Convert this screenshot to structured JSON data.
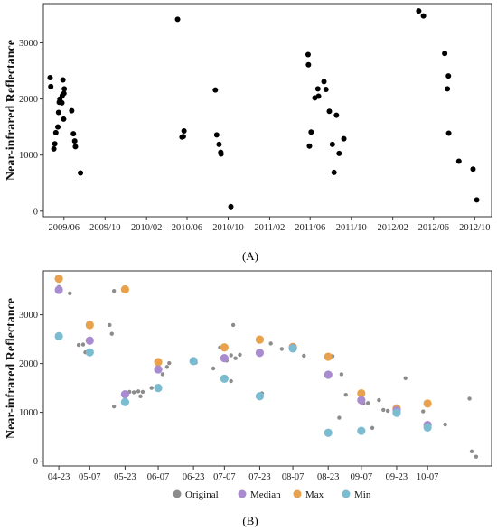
{
  "chart_data": [
    {
      "type": "scatter",
      "panel_label": "(A)",
      "ylabel": "Near-infrared Reflectance",
      "yticks": [
        0,
        1000,
        2000,
        3000
      ],
      "ylim": [
        -100,
        3700
      ],
      "x_ticks": [
        "2009/06",
        "2009/10",
        "2010/02",
        "2010/06",
        "2010/10",
        "2011/02",
        "2011/06",
        "2011/10",
        "2012/02",
        "2012/06",
        "2012/10"
      ],
      "x_domain": [
        "2009-04-01",
        "2012-11-20"
      ],
      "grid": false,
      "color": "#000000",
      "points": [
        {
          "x": "2009-04-21",
          "y": 2380
        },
        {
          "x": "2009-04-23",
          "y": 2220
        },
        {
          "x": "2009-05-02",
          "y": 1110
        },
        {
          "x": "2009-05-05",
          "y": 1200
        },
        {
          "x": "2009-05-08",
          "y": 1400
        },
        {
          "x": "2009-05-14",
          "y": 1500
        },
        {
          "x": "2009-05-16",
          "y": 1760
        },
        {
          "x": "2009-05-18",
          "y": 1940
        },
        {
          "x": "2009-05-20",
          "y": 2000
        },
        {
          "x": "2009-05-26",
          "y": 1930
        },
        {
          "x": "2009-05-27",
          "y": 2060
        },
        {
          "x": "2009-05-29",
          "y": 2340
        },
        {
          "x": "2009-06-01",
          "y": 2100
        },
        {
          "x": "2009-06-02",
          "y": 2180
        },
        {
          "x": "2009-05-31",
          "y": 1640
        },
        {
          "x": "2009-06-24",
          "y": 1790
        },
        {
          "x": "2009-06-29",
          "y": 1380
        },
        {
          "x": "2009-07-03",
          "y": 1250
        },
        {
          "x": "2009-07-05",
          "y": 1150
        },
        {
          "x": "2009-07-20",
          "y": 680
        },
        {
          "x": "2010-05-04",
          "y": 3420
        },
        {
          "x": "2010-05-17",
          "y": 1320
        },
        {
          "x": "2010-05-21",
          "y": 1330
        },
        {
          "x": "2010-05-23",
          "y": 1430
        },
        {
          "x": "2010-08-24",
          "y": 2160
        },
        {
          "x": "2010-08-28",
          "y": 1360
        },
        {
          "x": "2010-09-04",
          "y": 1190
        },
        {
          "x": "2010-09-09",
          "y": 1050
        },
        {
          "x": "2010-09-10",
          "y": 1020
        },
        {
          "x": "2010-10-09",
          "y": 80
        },
        {
          "x": "2011-05-26",
          "y": 2790
        },
        {
          "x": "2011-05-27",
          "y": 2610
        },
        {
          "x": "2011-05-30",
          "y": 1160
        },
        {
          "x": "2011-06-04",
          "y": 1410
        },
        {
          "x": "2011-06-15",
          "y": 2020
        },
        {
          "x": "2011-06-24",
          "y": 2180
        },
        {
          "x": "2011-06-26",
          "y": 2050
        },
        {
          "x": "2011-07-12",
          "y": 2310
        },
        {
          "x": "2011-07-18",
          "y": 2170
        },
        {
          "x": "2011-07-28",
          "y": 1780
        },
        {
          "x": "2011-08-06",
          "y": 1190
        },
        {
          "x": "2011-08-11",
          "y": 690
        },
        {
          "x": "2011-08-18",
          "y": 1710
        },
        {
          "x": "2011-08-26",
          "y": 1030
        },
        {
          "x": "2011-09-09",
          "y": 1290
        },
        {
          "x": "2012-04-18",
          "y": 3570
        },
        {
          "x": "2012-05-02",
          "y": 3480
        },
        {
          "x": "2012-07-04",
          "y": 2810
        },
        {
          "x": "2012-07-12",
          "y": 2180
        },
        {
          "x": "2012-07-15",
          "y": 2410
        },
        {
          "x": "2012-07-16",
          "y": 1390
        },
        {
          "x": "2012-08-15",
          "y": 890
        },
        {
          "x": "2012-09-26",
          "y": 750
        },
        {
          "x": "2012-10-07",
          "y": 200
        }
      ]
    },
    {
      "type": "scatter",
      "panel_label": "(B)",
      "ylabel": "Near-infrared Reflectance",
      "yticks": [
        0,
        1000,
        2000,
        3000
      ],
      "ylim": [
        -100,
        3900
      ],
      "x_ticks": [
        "04-23",
        "05-07",
        "05-23",
        "06-07",
        "06-23",
        "07-07",
        "07-23",
        "08-07",
        "08-23",
        "09-07",
        "09-23",
        "10-07"
      ],
      "x_domain": [
        "04-16",
        "11-05"
      ],
      "grid": false,
      "legend": {
        "position": "bottom",
        "entries": [
          "Original",
          "Median",
          "Max",
          "Min"
        ]
      },
      "series": [
        {
          "name": "Original",
          "color": "#8c8c8c",
          "points": [
            {
              "x": "04-23",
              "y": 3570
            },
            {
              "x": "04-28",
              "y": 3440
            },
            {
              "x": "05-02",
              "y": 2380
            },
            {
              "x": "05-04",
              "y": 2390
            },
            {
              "x": "05-05",
              "y": 2230
            },
            {
              "x": "05-16",
              "y": 2790
            },
            {
              "x": "05-17",
              "y": 2610
            },
            {
              "x": "05-18",
              "y": 3490
            },
            {
              "x": "05-18",
              "y": 1120
            },
            {
              "x": "05-23",
              "y": 1250
            },
            {
              "x": "05-25",
              "y": 1420
            },
            {
              "x": "05-27",
              "y": 1410
            },
            {
              "x": "05-29",
              "y": 1430
            },
            {
              "x": "05-30",
              "y": 1330
            },
            {
              "x": "05-31",
              "y": 1420
            },
            {
              "x": "06-04",
              "y": 1500
            },
            {
              "x": "06-09",
              "y": 1780
            },
            {
              "x": "06-11",
              "y": 1930
            },
            {
              "x": "06-12",
              "y": 2010
            },
            {
              "x": "06-24",
              "y": 2020
            },
            {
              "x": "07-02",
              "y": 1900
            },
            {
              "x": "07-05",
              "y": 2330
            },
            {
              "x": "07-08",
              "y": 2060
            },
            {
              "x": "07-10",
              "y": 2170
            },
            {
              "x": "07-11",
              "y": 2790
            },
            {
              "x": "07-12",
              "y": 2110
            },
            {
              "x": "07-14",
              "y": 2180
            },
            {
              "x": "07-10",
              "y": 1640
            },
            {
              "x": "07-24",
              "y": 1390
            },
            {
              "x": "07-28",
              "y": 2410
            },
            {
              "x": "08-02",
              "y": 2300
            },
            {
              "x": "08-12",
              "y": 2160
            },
            {
              "x": "08-24",
              "y": 1780
            },
            {
              "x": "08-25",
              "y": 2150
            },
            {
              "x": "08-28",
              "y": 890
            },
            {
              "x": "08-29",
              "y": 1780
            },
            {
              "x": "08-31",
              "y": 1360
            },
            {
              "x": "09-08",
              "y": 1180
            },
            {
              "x": "09-10",
              "y": 1190
            },
            {
              "x": "09-12",
              "y": 680
            },
            {
              "x": "09-15",
              "y": 1250
            },
            {
              "x": "09-17",
              "y": 1050
            },
            {
              "x": "09-19",
              "y": 1030
            },
            {
              "x": "09-27",
              "y": 1700
            },
            {
              "x": "10-05",
              "y": 1020
            },
            {
              "x": "10-15",
              "y": 750
            },
            {
              "x": "10-26",
              "y": 1280
            },
            {
              "x": "10-27",
              "y": 200
            },
            {
              "x": "10-29",
              "y": 90
            }
          ]
        },
        {
          "name": "Median",
          "color": "#a98cd0",
          "points": [
            {
              "x": "04-23",
              "y": 3510
            },
            {
              "x": "05-07",
              "y": 2470
            },
            {
              "x": "05-23",
              "y": 1370
            },
            {
              "x": "06-07",
              "y": 1880
            },
            {
              "x": "07-07",
              "y": 2110
            },
            {
              "x": "07-23",
              "y": 2220
            },
            {
              "x": "08-07",
              "y": 2320
            },
            {
              "x": "08-23",
              "y": 1770
            },
            {
              "x": "09-07",
              "y": 1250
            },
            {
              "x": "09-23",
              "y": 1040
            },
            {
              "x": "10-07",
              "y": 740
            }
          ]
        },
        {
          "name": "Max",
          "color": "#e8a24e",
          "points": [
            {
              "x": "04-23",
              "y": 3740
            },
            {
              "x": "05-07",
              "y": 2790
            },
            {
              "x": "05-23",
              "y": 3520
            },
            {
              "x": "06-07",
              "y": 2030
            },
            {
              "x": "07-07",
              "y": 2330
            },
            {
              "x": "07-23",
              "y": 2490
            },
            {
              "x": "08-07",
              "y": 2340
            },
            {
              "x": "08-23",
              "y": 2140
            },
            {
              "x": "09-07",
              "y": 1390
            },
            {
              "x": "09-23",
              "y": 1080
            },
            {
              "x": "10-07",
              "y": 1180
            }
          ]
        },
        {
          "name": "Min",
          "color": "#7bbcd0",
          "points": [
            {
              "x": "04-23",
              "y": 2560
            },
            {
              "x": "05-07",
              "y": 2230
            },
            {
              "x": "05-23",
              "y": 1210
            },
            {
              "x": "06-07",
              "y": 1500
            },
            {
              "x": "06-23",
              "y": 2050
            },
            {
              "x": "07-07",
              "y": 1690
            },
            {
              "x": "07-23",
              "y": 1330
            },
            {
              "x": "08-07",
              "y": 2310
            },
            {
              "x": "08-23",
              "y": 580
            },
            {
              "x": "09-07",
              "y": 620
            },
            {
              "x": "09-23",
              "y": 990
            },
            {
              "x": "10-07",
              "y": 690
            }
          ]
        }
      ]
    }
  ]
}
